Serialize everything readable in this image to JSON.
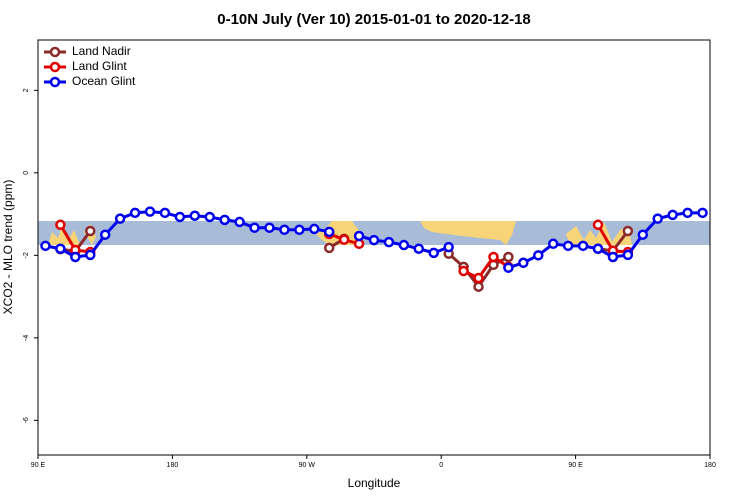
{
  "chart_data": {
    "type": "line",
    "title": "0-10N July (Ver 10)   2015-01-01 to 2020-12-18",
    "x_label": "Longitude",
    "y_label": "XCO2 - MLO trend (ppm)",
    "x": [
      95,
      105,
      115,
      125,
      135,
      145,
      155,
      165,
      175,
      185,
      195,
      205,
      215,
      225,
      235,
      245,
      255,
      265,
      275,
      285,
      295,
      305,
      315,
      325,
      335,
      345,
      355,
      365,
      375,
      385,
      395,
      405,
      415,
      425,
      435,
      445,
      455,
      465,
      475,
      485,
      495,
      505,
      515,
      525,
      535
    ],
    "series": [
      {
        "name": "Land Nadir",
        "color": "#8b2a2a",
        "values": [
          null,
          -1.85,
          -1.9,
          -1.41,
          null,
          null,
          null,
          null,
          null,
          null,
          null,
          null,
          null,
          null,
          null,
          null,
          null,
          null,
          null,
          -1.82,
          -1.6,
          null,
          null,
          null,
          null,
          null,
          null,
          -1.96,
          -2.28,
          -2.76,
          -2.23,
          -2.04,
          null,
          null,
          null,
          null,
          null,
          -1.84,
          -1.89,
          -1.41,
          null,
          null,
          null,
          null,
          null
        ]
      },
      {
        "name": "Land Glint",
        "color": "#e00000",
        "values": [
          null,
          -1.26,
          -1.87,
          -1.92,
          null,
          null,
          null,
          null,
          null,
          null,
          null,
          null,
          null,
          null,
          null,
          null,
          null,
          null,
          null,
          -1.48,
          -1.62,
          -1.72,
          null,
          null,
          null,
          null,
          null,
          null,
          -2.38,
          -2.55,
          -2.04,
          -2.28,
          null,
          null,
          null,
          null,
          null,
          -1.26,
          -1.89,
          -1.92,
          null,
          null,
          null,
          null,
          null
        ]
      },
      {
        "name": "Ocean Glint",
        "color": "#0000ee",
        "values": [
          -1.77,
          -1.84,
          -2.04,
          -1.99,
          -1.5,
          -1.11,
          -0.97,
          -0.94,
          -0.97,
          -1.07,
          -1.04,
          -1.07,
          -1.14,
          -1.19,
          -1.33,
          -1.33,
          -1.38,
          -1.38,
          -1.36,
          -1.43,
          null,
          -1.53,
          -1.63,
          -1.68,
          -1.75,
          -1.84,
          -1.94,
          -1.8,
          null,
          null,
          null,
          -2.3,
          -2.18,
          -2.0,
          -1.72,
          -1.77,
          -1.77,
          -1.84,
          -2.04,
          -1.99,
          -1.5,
          -1.11,
          -1.02,
          -0.97,
          -0.97
        ]
      }
    ],
    "xlim": [
      90,
      540
    ],
    "xticks": [
      {
        "value": 90,
        "label": "90 E"
      },
      180,
      {
        "value": 270,
        "label": "90 W"
      },
      {
        "value": 360,
        "label": "0"
      },
      {
        "value": 450,
        "label": "90 E"
      },
      {
        "value": 540,
        "label": "180"
      }
    ],
    "ylim": [
      -6.84,
      3.22
    ],
    "yticks": [
      -6,
      -4,
      -2,
      0,
      2
    ],
    "legend": "top-left"
  }
}
